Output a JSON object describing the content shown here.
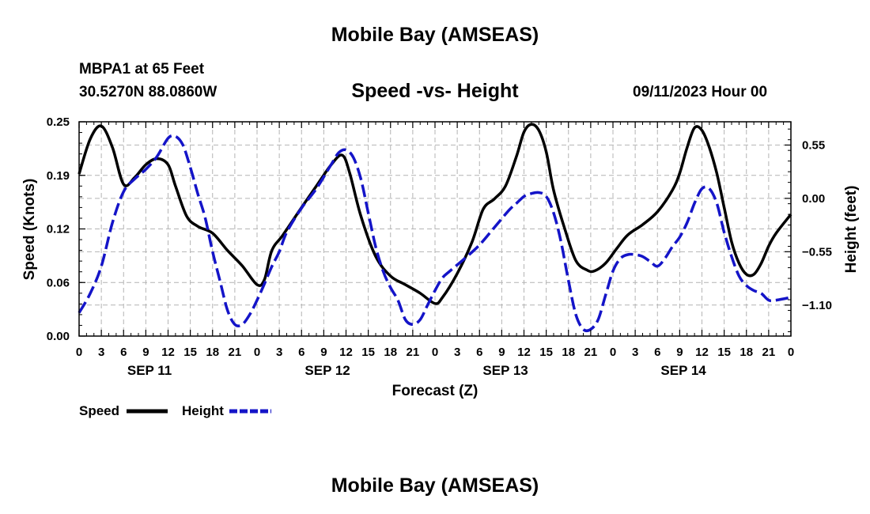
{
  "header": {
    "title": "Mobile Bay (AMSEAS)",
    "station": "MBPA1 at 65 Feet",
    "coords": "30.5270N  88.0860W",
    "subtitle": "Speed -vs- Height",
    "datetime": "09/11/2023 Hour 00",
    "footer_title": "Mobile Bay (AMSEAS)"
  },
  "chart_data": {
    "type": "line",
    "title": "Speed -vs- Height",
    "xlabel": "Forecast (Z)",
    "ylabel": "Speed (Knots)",
    "y2label": "Height (feet)",
    "x_range_hours": [
      0,
      96
    ],
    "ylim": [
      0,
      0.25
    ],
    "y2lim": [
      -1.42,
      0.79
    ],
    "yticks": [
      "0.00",
      "0.06",
      "0.12",
      "0.19",
      "0.25"
    ],
    "ytick_values": [
      0,
      0.0625,
      0.125,
      0.1875,
      0.25
    ],
    "y2ticks": [
      "0.55",
      "0.00",
      "−0.55",
      "−1.10"
    ],
    "y2tick_values": [
      0.55,
      0.0,
      -0.55,
      -1.1
    ],
    "xtick_labels": [
      "0",
      "3",
      "6",
      "9",
      "12",
      "15",
      "18",
      "21",
      "0",
      "3",
      "6",
      "9",
      "12",
      "15",
      "18",
      "21",
      "0",
      "3",
      "6",
      "9",
      "12",
      "15",
      "18",
      "21",
      "0",
      "3",
      "6",
      "9",
      "12",
      "15",
      "18",
      "21",
      "0"
    ],
    "day_labels": [
      {
        "label": "SEP 11",
        "hour": 9.5
      },
      {
        "label": "SEP 12",
        "hour": 33.5
      },
      {
        "label": "SEP 13",
        "hour": 57.5
      },
      {
        "label": "SEP 14",
        "hour": 81.5
      }
    ],
    "grid": true,
    "series": [
      {
        "name": "Speed",
        "color": "#000000",
        "dash": "solid",
        "axis": "left",
        "points": [
          [
            0,
            0.189
          ],
          [
            1.5,
            0.23
          ],
          [
            3,
            0.245
          ],
          [
            4.5,
            0.22
          ],
          [
            6,
            0.177
          ],
          [
            7.5,
            0.185
          ],
          [
            9,
            0.2
          ],
          [
            10.5,
            0.207
          ],
          [
            12,
            0.2
          ],
          [
            13,
            0.175
          ],
          [
            14.5,
            0.14
          ],
          [
            16,
            0.128
          ],
          [
            18,
            0.12
          ],
          [
            20,
            0.1
          ],
          [
            22,
            0.082
          ],
          [
            24,
            0.06
          ],
          [
            25,
            0.066
          ],
          [
            26,
            0.1
          ],
          [
            27.5,
            0.118
          ],
          [
            30,
            0.15
          ],
          [
            32,
            0.175
          ],
          [
            34,
            0.2
          ],
          [
            35.5,
            0.211
          ],
          [
            36.5,
            0.19
          ],
          [
            38,
            0.14
          ],
          [
            40,
            0.093
          ],
          [
            42,
            0.07
          ],
          [
            44,
            0.06
          ],
          [
            46,
            0.05
          ],
          [
            48,
            0.038
          ],
          [
            49,
            0.045
          ],
          [
            51,
            0.073
          ],
          [
            53,
            0.11
          ],
          [
            54.5,
            0.148
          ],
          [
            56,
            0.16
          ],
          [
            57.5,
            0.175
          ],
          [
            59,
            0.21
          ],
          [
            60,
            0.238
          ],
          [
            61,
            0.247
          ],
          [
            62,
            0.24
          ],
          [
            63,
            0.215
          ],
          [
            64,
            0.17
          ],
          [
            65.5,
            0.125
          ],
          [
            67,
            0.088
          ],
          [
            68.5,
            0.077
          ],
          [
            69.5,
            0.076
          ],
          [
            71,
            0.085
          ],
          [
            72.5,
            0.102
          ],
          [
            74,
            0.118
          ],
          [
            76,
            0.13
          ],
          [
            78,
            0.145
          ],
          [
            80,
            0.17
          ],
          [
            81,
            0.19
          ],
          [
            82,
            0.22
          ],
          [
            83,
            0.243
          ],
          [
            84,
            0.24
          ],
          [
            85,
            0.22
          ],
          [
            86,
            0.19
          ],
          [
            87,
            0.15
          ],
          [
            88,
            0.11
          ],
          [
            89,
            0.085
          ],
          [
            90,
            0.072
          ],
          [
            91,
            0.072
          ],
          [
            92,
            0.085
          ],
          [
            93,
            0.105
          ],
          [
            94,
            0.12
          ],
          [
            96,
            0.142
          ]
        ]
      },
      {
        "name": "Height",
        "color": "#1414c8",
        "dash": "dashed",
        "axis": "right",
        "points": [
          [
            0,
            -1.18
          ],
          [
            1.5,
            -0.98
          ],
          [
            3,
            -0.7
          ],
          [
            4.5,
            -0.25
          ],
          [
            6,
            0.07
          ],
          [
            7.5,
            0.2
          ],
          [
            9,
            0.3
          ],
          [
            10.5,
            0.43
          ],
          [
            12,
            0.62
          ],
          [
            13,
            0.64
          ],
          [
            14,
            0.55
          ],
          [
            15,
            0.32
          ],
          [
            16,
            0.05
          ],
          [
            17,
            -0.2
          ],
          [
            18,
            -0.55
          ],
          [
            19,
            -0.85
          ],
          [
            20,
            -1.15
          ],
          [
            21,
            -1.3
          ],
          [
            22,
            -1.3
          ],
          [
            23,
            -1.2
          ],
          [
            24,
            -1.05
          ],
          [
            25,
            -0.88
          ],
          [
            26,
            -0.7
          ],
          [
            27,
            -0.55
          ],
          [
            28,
            -0.35
          ],
          [
            30,
            -0.1
          ],
          [
            32,
            0.1
          ],
          [
            34,
            0.35
          ],
          [
            35,
            0.47
          ],
          [
            36,
            0.5
          ],
          [
            37,
            0.42
          ],
          [
            38,
            0.2
          ],
          [
            39,
            -0.15
          ],
          [
            40,
            -0.5
          ],
          [
            41,
            -0.75
          ],
          [
            42,
            -0.92
          ],
          [
            43,
            -1.05
          ],
          [
            44,
            -1.25
          ],
          [
            45,
            -1.3
          ],
          [
            46,
            -1.25
          ],
          [
            47,
            -1.1
          ],
          [
            48,
            -0.95
          ],
          [
            49,
            -0.82
          ],
          [
            50,
            -0.75
          ],
          [
            52,
            -0.62
          ],
          [
            54,
            -0.48
          ],
          [
            56,
            -0.3
          ],
          [
            58,
            -0.12
          ],
          [
            59,
            -0.05
          ],
          [
            60,
            0.02
          ],
          [
            61,
            0.05
          ],
          [
            62,
            0.06
          ],
          [
            63,
            0.02
          ],
          [
            64,
            -0.15
          ],
          [
            65,
            -0.45
          ],
          [
            66,
            -0.85
          ],
          [
            67,
            -1.2
          ],
          [
            68,
            -1.35
          ],
          [
            69,
            -1.35
          ],
          [
            70,
            -1.25
          ],
          [
            71,
            -1.0
          ],
          [
            72,
            -0.75
          ],
          [
            73,
            -0.62
          ],
          [
            74,
            -0.58
          ],
          [
            75,
            -0.58
          ],
          [
            76,
            -0.6
          ],
          [
            77,
            -0.65
          ],
          [
            78,
            -0.7
          ],
          [
            79,
            -0.62
          ],
          [
            80,
            -0.5
          ],
          [
            81,
            -0.4
          ],
          [
            82,
            -0.25
          ],
          [
            83,
            -0.05
          ],
          [
            84,
            0.1
          ],
          [
            85,
            0.1
          ],
          [
            86,
            -0.05
          ],
          [
            87,
            -0.35
          ],
          [
            88,
            -0.6
          ],
          [
            89,
            -0.8
          ],
          [
            90,
            -0.9
          ],
          [
            91,
            -0.95
          ],
          [
            92,
            -0.98
          ],
          [
            93,
            -1.05
          ],
          [
            94,
            -1.05
          ],
          [
            96,
            -1.02
          ]
        ]
      }
    ]
  },
  "legend": {
    "speed_label": "Speed",
    "height_label": "Height"
  }
}
